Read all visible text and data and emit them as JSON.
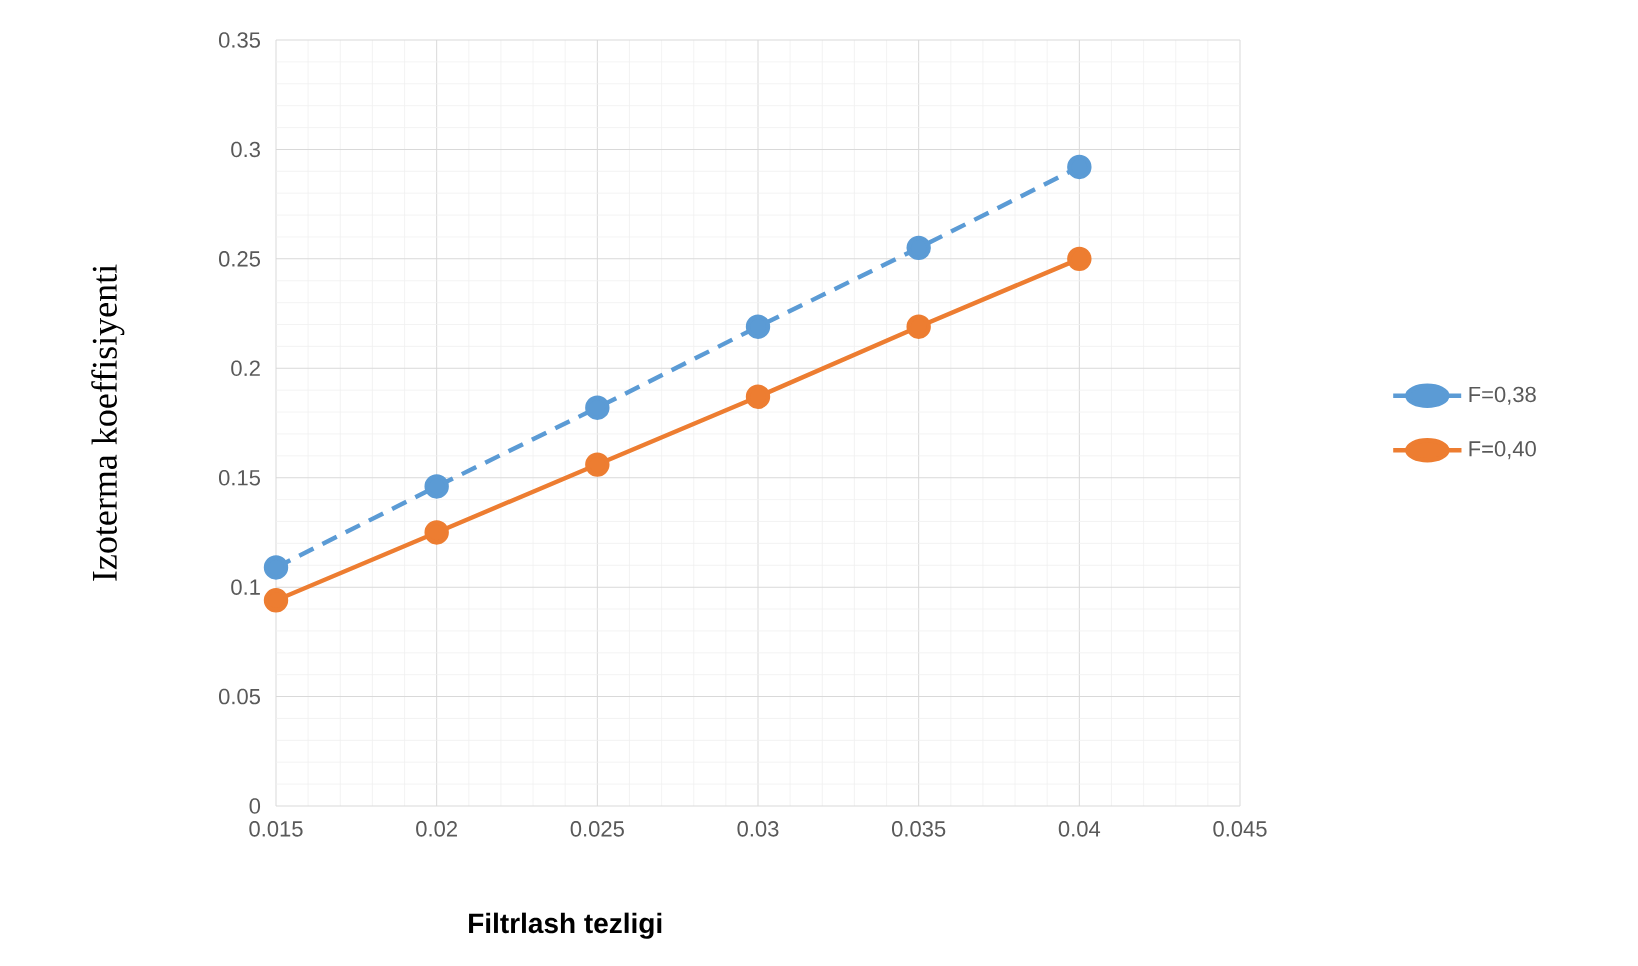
{
  "chart_data": {
    "type": "line",
    "xlabel": "Filtrlash tezligi",
    "ylabel": "Izoterma koeffisiyenti",
    "x": [
      0.015,
      0.02,
      0.025,
      0.03,
      0.035,
      0.04
    ],
    "series": [
      {
        "name": "F=0,38",
        "color": "#5b9bd5",
        "line_style": "dashed",
        "values": [
          0.109,
          0.146,
          0.182,
          0.219,
          0.255,
          0.292
        ]
      },
      {
        "name": "F=0,40",
        "color": "#ed7d31",
        "line_style": "solid",
        "values": [
          0.094,
          0.125,
          0.156,
          0.187,
          0.219,
          0.25
        ]
      }
    ],
    "xlim": [
      0.015,
      0.045
    ],
    "xticks": [
      0.015,
      0.02,
      0.025,
      0.03,
      0.035,
      0.04,
      0.045
    ],
    "ylim": [
      0,
      0.35
    ],
    "yticks": [
      0,
      0.05,
      0.1,
      0.15,
      0.2,
      0.25,
      0.3,
      0.35
    ],
    "grid": true,
    "legend": "right",
    "marker": "circle"
  }
}
